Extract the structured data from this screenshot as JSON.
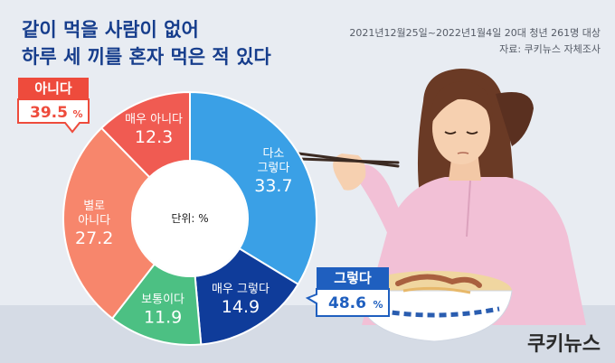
{
  "header": {
    "title_line1": "같이 먹을 사람이 없어",
    "title_line2": "하루 세 끼를 혼자 먹은 적 있다",
    "survey_info": "2021년12월25일~2022년1월4일  20대 청년 261명 대상",
    "source": "자료: 쿠키뉴스 자체조사"
  },
  "callouts": {
    "no": {
      "label": "아니다",
      "value": "39.5",
      "unit": "%"
    },
    "yes": {
      "label": "그렇다",
      "value": "48.6",
      "unit": "%"
    }
  },
  "center_label": "단위: %",
  "logo_text": "쿠키뉴스",
  "chart_data": {
    "type": "pie",
    "style": "donut",
    "unit": "%",
    "slices": [
      {
        "label": "다소 그렇다",
        "value": 33.7,
        "color": "#3aa0e6"
      },
      {
        "label": "매우 그렇다",
        "value": 14.9,
        "color": "#0f3c9a"
      },
      {
        "label": "보통이다",
        "value": 11.9,
        "color": "#4cc083"
      },
      {
        "label": "별로 아니다",
        "value": 27.2,
        "color": "#f7866c"
      },
      {
        "label": "매우 아니다",
        "value": 12.3,
        "color": "#f05b52"
      }
    ],
    "slice_display": [
      {
        "lines": [
          "다소",
          "그렇다"
        ],
        "value": "33.7"
      },
      {
        "lines": [
          "매우 그렇다"
        ],
        "value": "14.9"
      },
      {
        "lines": [
          "보통이다"
        ],
        "value": "11.9"
      },
      {
        "lines": [
          "별로",
          "아니다"
        ],
        "value": "27.2"
      },
      {
        "lines": [
          "매우 아니다"
        ],
        "value": "12.3"
      }
    ]
  },
  "colors": {
    "background": "#e6eaf1",
    "title": "#163d8c",
    "no_accent": "#ee4b3c",
    "yes_accent": "#1f5fbf"
  }
}
